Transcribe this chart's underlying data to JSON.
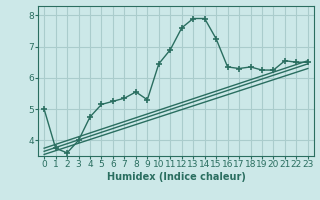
{
  "xlabel": "Humidex (Indice chaleur)",
  "ylabel": "",
  "background_color": "#cce8e8",
  "grid_color": "#aacccc",
  "line_color": "#2a6e60",
  "xlim": [
    -0.5,
    23.5
  ],
  "ylim": [
    3.5,
    8.3
  ],
  "yticks": [
    4,
    5,
    6,
    7,
    8
  ],
  "xticks": [
    0,
    1,
    2,
    3,
    4,
    5,
    6,
    7,
    8,
    9,
    10,
    11,
    12,
    13,
    14,
    15,
    16,
    17,
    18,
    19,
    20,
    21,
    22,
    23
  ],
  "curve1_x": [
    0,
    1,
    2,
    3,
    4,
    5,
    6,
    7,
    8,
    9,
    10,
    11,
    12,
    13,
    14,
    15,
    16,
    17,
    18,
    19,
    20,
    21,
    22,
    23
  ],
  "curve1_y": [
    5.0,
    3.75,
    3.6,
    4.0,
    4.75,
    5.15,
    5.25,
    5.35,
    5.55,
    5.3,
    6.45,
    6.9,
    7.6,
    7.9,
    7.9,
    7.25,
    6.35,
    6.3,
    6.35,
    6.25,
    6.25,
    6.55,
    6.5,
    6.5
  ],
  "curve2_x": [
    0,
    23
  ],
  "curve2_y": [
    3.75,
    6.55
  ],
  "curve3_x": [
    0,
    23
  ],
  "curve3_y": [
    3.65,
    6.45
  ],
  "curve4_x": [
    0,
    23
  ],
  "curve4_y": [
    3.55,
    6.3
  ]
}
